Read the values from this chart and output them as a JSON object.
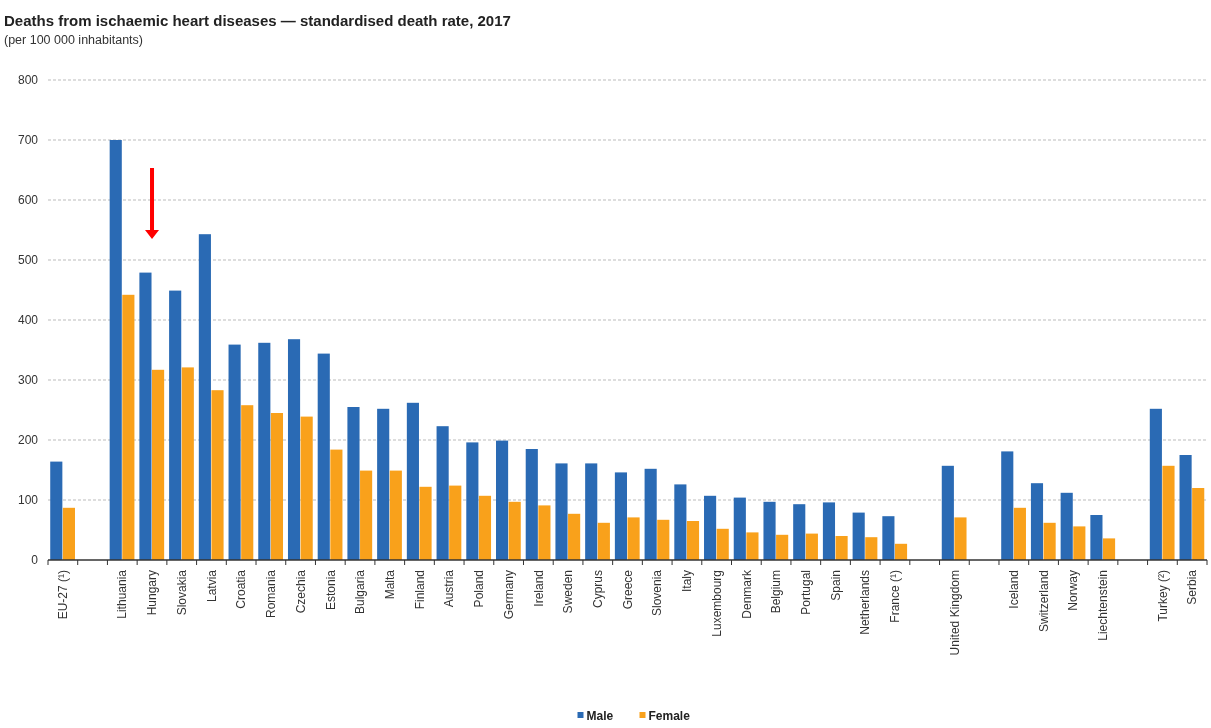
{
  "chart_data": {
    "type": "bar",
    "title": "Deaths from ischaemic heart diseases — standardised death rate, 2017",
    "subtitle": "(per 100 000 inhabitants)",
    "categories": [
      "EU-27 (¹)",
      null,
      "Lithuania",
      "Hungary",
      "Slovakia",
      "Latvia",
      "Croatia",
      "Romania",
      "Czechia",
      "Estonia",
      "Bulgaria",
      "Malta",
      "Finland",
      "Austria",
      "Poland",
      "Germany",
      "Ireland",
      "Sweden",
      "Cyprus",
      "Greece",
      "Slovenia",
      "Italy",
      "Luxembourg",
      "Denmark",
      "Belgium",
      "Portugal",
      "Spain",
      "Netherlands",
      "France (¹)",
      null,
      "United Kingdom",
      null,
      "Iceland",
      "Switzerland",
      "Norway",
      "Liechtenstein",
      null,
      "Turkey (²)",
      "Serbia"
    ],
    "series": [
      {
        "name": "Male",
        "color": "#2a6ab4",
        "values": [
          164,
          null,
          700,
          479,
          449,
          543,
          359,
          362,
          368,
          344,
          255,
          252,
          262,
          223,
          196,
          199,
          185,
          161,
          161,
          146,
          152,
          126,
          107,
          104,
          97,
          93,
          96,
          79,
          73,
          null,
          157,
          null,
          181,
          128,
          112,
          75,
          null,
          252,
          175
        ]
      },
      {
        "name": "Female",
        "color": "#f9a11b",
        "values": [
          87,
          null,
          442,
          317,
          321,
          283,
          258,
          245,
          239,
          184,
          149,
          149,
          122,
          124,
          107,
          97,
          91,
          77,
          62,
          71,
          67,
          65,
          52,
          46,
          42,
          44,
          40,
          38,
          27,
          null,
          71,
          null,
          87,
          62,
          56,
          36,
          null,
          157,
          120
        ]
      }
    ],
    "ylim": [
      0,
      800
    ],
    "yticks": [
      0,
      100,
      200,
      300,
      400,
      500,
      600,
      700,
      800
    ],
    "grid": "y",
    "legend": "bottom"
  }
}
